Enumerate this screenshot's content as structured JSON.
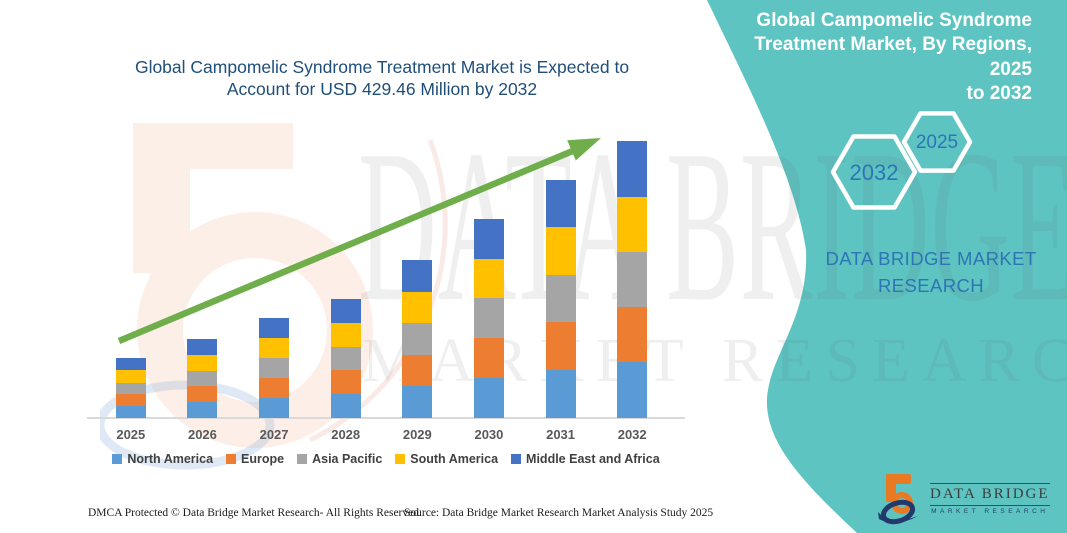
{
  "page": {
    "title_line1": "Global Campomelic Syndrome Treatment Market is Expected to",
    "title_line2": "Account for USD 429.46 Million by 2032",
    "title_color": "#1F4E79",
    "background_color": "#ffffff"
  },
  "chart_data": {
    "type": "bar",
    "stacked": true,
    "title": "Global Campomelic Syndrome Treatment Market is Expected to Account for USD 429.46 Million by 2032",
    "units": "USD Million",
    "categories": [
      "2025",
      "2026",
      "2027",
      "2028",
      "2029",
      "2030",
      "2031",
      "2032"
    ],
    "series": [
      {
        "name": "North America",
        "color": "#5B9BD5",
        "values": [
          19.0,
          25.0,
          31.5,
          37.5,
          49.0,
          62.5,
          74.5,
          86.5
        ]
      },
      {
        "name": "Europe",
        "color": "#ED7D31",
        "values": [
          17.5,
          24.0,
          30.5,
          36.5,
          49.5,
          61.5,
          74.0,
          86.0
        ]
      },
      {
        "name": "Asia Pacific",
        "color": "#A5A5A5",
        "values": [
          17.0,
          24.0,
          30.5,
          36.5,
          49.5,
          61.5,
          74.0,
          85.5
        ]
      },
      {
        "name": "South America",
        "color": "#FFC000",
        "values": [
          20.5,
          25.5,
          31.5,
          37.0,
          48.0,
          61.5,
          73.5,
          85.5
        ]
      },
      {
        "name": "Middle East and Africa",
        "color": "#4472C4",
        "values": [
          19.0,
          24.0,
          31.0,
          37.0,
          49.0,
          61.5,
          73.5,
          86.0
        ]
      }
    ],
    "totals_estimated": [
      93.0,
      122.5,
      155.0,
      184.5,
      245.0,
      308.5,
      369.5,
      429.46
    ],
    "ylim": [
      0,
      450
    ],
    "grid": false,
    "xlabel": "",
    "ylabel": "",
    "legend_position": "bottom",
    "trend_arrow_color": "#6FAE4B",
    "annotations": [
      "upward green trend arrow from 2025 to 2032"
    ]
  },
  "right_panel": {
    "background_color": "#5DC4C2",
    "title": "Global Campomelic Syndrome Treatment Market, By Regions, 2025 to 2032",
    "title_lines": [
      "Global Campomelic Syndrome",
      "Treatment Market, By Regions, 2025",
      "to 2032"
    ],
    "hexagon_back_label": "2032",
    "hexagon_front_label": "2025",
    "wordmark": "DATA BRIDGE MARKET RESEARCH"
  },
  "logo": {
    "name": "DATA BRIDGE",
    "subtitle": "MARKET RESEARCH"
  },
  "footer": {
    "dmca": "DMCA Protected © Data Bridge Market Research-  All Rights Reserved.",
    "source": "Source: Data Bridge Market Research  Market Analysis Study 2025"
  },
  "watermark": {
    "row1": "DATA BRIDGE",
    "row2": "MARKET RESEARCH"
  }
}
